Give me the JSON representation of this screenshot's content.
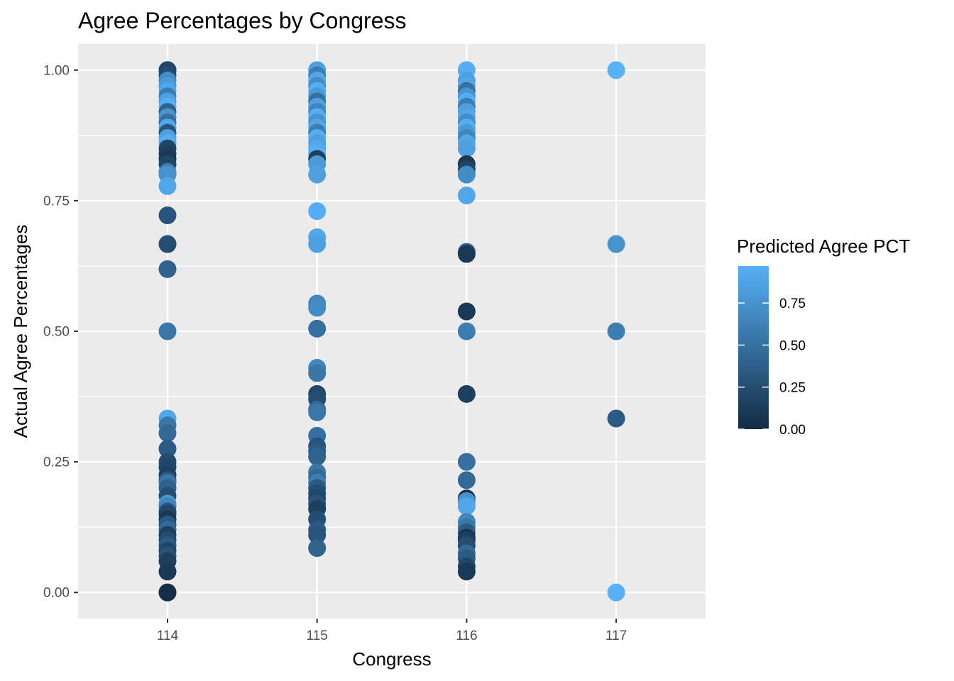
{
  "chart_data": {
    "type": "scatter",
    "title": "Agree Percentages by Congress",
    "xlabel": "Congress",
    "ylabel": "Actual Agree Percentages",
    "x_categories": [
      "114",
      "115",
      "116",
      "117"
    ],
    "y_ticks": [
      "0.00",
      "0.25",
      "0.50",
      "0.75",
      "1.00"
    ],
    "ylim": [
      -0.05,
      1.05
    ],
    "grid": true,
    "legend": {
      "title": "Predicted Agree PCT",
      "position": "right",
      "ticks": [
        "0.00",
        "0.25",
        "0.50",
        "0.75"
      ],
      "range": [
        0,
        0.97
      ],
      "color_low": "#132b43",
      "color_high": "#56b1f7"
    },
    "points": [
      {
        "x": "114",
        "y": 1.0,
        "c": 0.15
      },
      {
        "x": "114",
        "y": 1.0,
        "c": 0.2
      },
      {
        "x": "114",
        "y": 0.99,
        "c": 0.25
      },
      {
        "x": "114",
        "y": 0.98,
        "c": 0.7
      },
      {
        "x": "114",
        "y": 0.97,
        "c": 0.8
      },
      {
        "x": "114",
        "y": 0.96,
        "c": 0.9
      },
      {
        "x": "114",
        "y": 0.95,
        "c": 0.6
      },
      {
        "x": "114",
        "y": 0.94,
        "c": 0.85
      },
      {
        "x": "114",
        "y": 0.93,
        "c": 0.95
      },
      {
        "x": "114",
        "y": 0.92,
        "c": 0.4
      },
      {
        "x": "114",
        "y": 0.91,
        "c": 0.75
      },
      {
        "x": "114",
        "y": 0.9,
        "c": 0.5
      },
      {
        "x": "114",
        "y": 0.89,
        "c": 0.9
      },
      {
        "x": "114",
        "y": 0.88,
        "c": 0.3
      },
      {
        "x": "114",
        "y": 0.87,
        "c": 0.85
      },
      {
        "x": "114",
        "y": 0.86,
        "c": 0.95
      },
      {
        "x": "114",
        "y": 0.85,
        "c": 0.2
      },
      {
        "x": "114",
        "y": 0.84,
        "c": 0.15
      },
      {
        "x": "114",
        "y": 0.83,
        "c": 0.1
      },
      {
        "x": "114",
        "y": 0.82,
        "c": 0.2
      },
      {
        "x": "114",
        "y": 0.805,
        "c": 0.6
      },
      {
        "x": "114",
        "y": 0.8,
        "c": 0.75
      },
      {
        "x": "114",
        "y": 0.778,
        "c": 0.9
      },
      {
        "x": "114",
        "y": 0.722,
        "c": 0.3
      },
      {
        "x": "114",
        "y": 0.667,
        "c": 0.2
      },
      {
        "x": "114",
        "y": 0.667,
        "c": 0.25
      },
      {
        "x": "114",
        "y": 0.619,
        "c": 0.4
      },
      {
        "x": "114",
        "y": 0.5,
        "c": 0.55
      },
      {
        "x": "114",
        "y": 0.333,
        "c": 0.9
      },
      {
        "x": "114",
        "y": 0.32,
        "c": 0.55
      },
      {
        "x": "114",
        "y": 0.305,
        "c": 0.45
      },
      {
        "x": "114",
        "y": 0.275,
        "c": 0.35
      },
      {
        "x": "114",
        "y": 0.25,
        "c": 0.25
      },
      {
        "x": "114",
        "y": 0.24,
        "c": 0.2
      },
      {
        "x": "114",
        "y": 0.225,
        "c": 0.15
      },
      {
        "x": "114",
        "y": 0.215,
        "c": 0.3
      },
      {
        "x": "114",
        "y": 0.21,
        "c": 0.55
      },
      {
        "x": "114",
        "y": 0.2,
        "c": 0.4
      },
      {
        "x": "114",
        "y": 0.185,
        "c": 0.25
      },
      {
        "x": "114",
        "y": 0.17,
        "c": 0.8
      },
      {
        "x": "114",
        "y": 0.165,
        "c": 0.65
      },
      {
        "x": "114",
        "y": 0.155,
        "c": 0.3
      },
      {
        "x": "114",
        "y": 0.15,
        "c": 0.2
      },
      {
        "x": "114",
        "y": 0.14,
        "c": 0.1
      },
      {
        "x": "114",
        "y": 0.13,
        "c": 0.35
      },
      {
        "x": "114",
        "y": 0.12,
        "c": 0.45
      },
      {
        "x": "114",
        "y": 0.11,
        "c": 0.15
      },
      {
        "x": "114",
        "y": 0.1,
        "c": 0.25
      },
      {
        "x": "114",
        "y": 0.09,
        "c": 0.35
      },
      {
        "x": "114",
        "y": 0.08,
        "c": 0.2
      },
      {
        "x": "114",
        "y": 0.07,
        "c": 0.3
      },
      {
        "x": "114",
        "y": 0.06,
        "c": 0.15
      },
      {
        "x": "114",
        "y": 0.04,
        "c": 0.1
      },
      {
        "x": "114",
        "y": 0.0,
        "c": 0.05
      },
      {
        "x": "114",
        "y": 0.0,
        "c": 0.02
      },
      {
        "x": "115",
        "y": 1.0,
        "c": 0.85
      },
      {
        "x": "115",
        "y": 0.99,
        "c": 0.6
      },
      {
        "x": "115",
        "y": 0.98,
        "c": 0.9
      },
      {
        "x": "115",
        "y": 0.97,
        "c": 0.7
      },
      {
        "x": "115",
        "y": 0.96,
        "c": 0.95
      },
      {
        "x": "115",
        "y": 0.95,
        "c": 0.8
      },
      {
        "x": "115",
        "y": 0.94,
        "c": 0.5
      },
      {
        "x": "115",
        "y": 0.93,
        "c": 0.85
      },
      {
        "x": "115",
        "y": 0.92,
        "c": 0.65
      },
      {
        "x": "115",
        "y": 0.91,
        "c": 0.95
      },
      {
        "x": "115",
        "y": 0.9,
        "c": 0.75
      },
      {
        "x": "115",
        "y": 0.89,
        "c": 0.9
      },
      {
        "x": "115",
        "y": 0.88,
        "c": 0.6
      },
      {
        "x": "115",
        "y": 0.87,
        "c": 0.95
      },
      {
        "x": "115",
        "y": 0.86,
        "c": 0.85
      },
      {
        "x": "115",
        "y": 0.85,
        "c": 0.9
      },
      {
        "x": "115",
        "y": 0.84,
        "c": 0.95
      },
      {
        "x": "115",
        "y": 0.83,
        "c": 0.15
      },
      {
        "x": "115",
        "y": 0.82,
        "c": 0.8
      },
      {
        "x": "115",
        "y": 0.8,
        "c": 0.85
      },
      {
        "x": "115",
        "y": 0.73,
        "c": 0.95
      },
      {
        "x": "115",
        "y": 0.68,
        "c": 0.9
      },
      {
        "x": "115",
        "y": 0.667,
        "c": 0.85
      },
      {
        "x": "115",
        "y": 0.553,
        "c": 0.65
      },
      {
        "x": "115",
        "y": 0.545,
        "c": 0.7
      },
      {
        "x": "115",
        "y": 0.505,
        "c": 0.5
      },
      {
        "x": "115",
        "y": 0.43,
        "c": 0.65
      },
      {
        "x": "115",
        "y": 0.42,
        "c": 0.55
      },
      {
        "x": "115",
        "y": 0.38,
        "c": 0.2
      },
      {
        "x": "115",
        "y": 0.37,
        "c": 0.25
      },
      {
        "x": "115",
        "y": 0.35,
        "c": 0.45
      },
      {
        "x": "115",
        "y": 0.345,
        "c": 0.55
      },
      {
        "x": "115",
        "y": 0.3,
        "c": 0.5
      },
      {
        "x": "115",
        "y": 0.28,
        "c": 0.3
      },
      {
        "x": "115",
        "y": 0.27,
        "c": 0.35
      },
      {
        "x": "115",
        "y": 0.26,
        "c": 0.4
      },
      {
        "x": "115",
        "y": 0.23,
        "c": 0.55
      },
      {
        "x": "115",
        "y": 0.22,
        "c": 0.45
      },
      {
        "x": "115",
        "y": 0.21,
        "c": 0.6
      },
      {
        "x": "115",
        "y": 0.2,
        "c": 0.35
      },
      {
        "x": "115",
        "y": 0.19,
        "c": 0.25
      },
      {
        "x": "115",
        "y": 0.18,
        "c": 0.2
      },
      {
        "x": "115",
        "y": 0.17,
        "c": 0.3
      },
      {
        "x": "115",
        "y": 0.16,
        "c": 0.15
      },
      {
        "x": "115",
        "y": 0.14,
        "c": 0.25
      },
      {
        "x": "115",
        "y": 0.12,
        "c": 0.35
      },
      {
        "x": "115",
        "y": 0.11,
        "c": 0.3
      },
      {
        "x": "115",
        "y": 0.085,
        "c": 0.4
      },
      {
        "x": "116",
        "y": 1.0,
        "c": 0.95
      },
      {
        "x": "116",
        "y": 0.98,
        "c": 0.85
      },
      {
        "x": "116",
        "y": 0.97,
        "c": 0.9
      },
      {
        "x": "116",
        "y": 0.96,
        "c": 0.5
      },
      {
        "x": "116",
        "y": 0.95,
        "c": 0.75
      },
      {
        "x": "116",
        "y": 0.94,
        "c": 0.95
      },
      {
        "x": "116",
        "y": 0.93,
        "c": 0.6
      },
      {
        "x": "116",
        "y": 0.92,
        "c": 0.85
      },
      {
        "x": "116",
        "y": 0.91,
        "c": 0.9
      },
      {
        "x": "116",
        "y": 0.9,
        "c": 0.7
      },
      {
        "x": "116",
        "y": 0.89,
        "c": 0.95
      },
      {
        "x": "116",
        "y": 0.88,
        "c": 0.8
      },
      {
        "x": "116",
        "y": 0.87,
        "c": 0.65
      },
      {
        "x": "116",
        "y": 0.86,
        "c": 0.9
      },
      {
        "x": "116",
        "y": 0.85,
        "c": 0.85
      },
      {
        "x": "116",
        "y": 0.82,
        "c": 0.1
      },
      {
        "x": "116",
        "y": 0.81,
        "c": 0.2
      },
      {
        "x": "116",
        "y": 0.8,
        "c": 0.7
      },
      {
        "x": "116",
        "y": 0.76,
        "c": 0.9
      },
      {
        "x": "116",
        "y": 0.652,
        "c": 0.4
      },
      {
        "x": "116",
        "y": 0.648,
        "c": 0.1
      },
      {
        "x": "116",
        "y": 0.538,
        "c": 0.1
      },
      {
        "x": "116",
        "y": 0.5,
        "c": 0.6
      },
      {
        "x": "116",
        "y": 0.38,
        "c": 0.15
      },
      {
        "x": "116",
        "y": 0.25,
        "c": 0.5
      },
      {
        "x": "116",
        "y": 0.215,
        "c": 0.45
      },
      {
        "x": "116",
        "y": 0.18,
        "c": 0.05
      },
      {
        "x": "116",
        "y": 0.175,
        "c": 0.75
      },
      {
        "x": "116",
        "y": 0.165,
        "c": 0.9
      },
      {
        "x": "116",
        "y": 0.135,
        "c": 0.65
      },
      {
        "x": "116",
        "y": 0.125,
        "c": 0.55
      },
      {
        "x": "116",
        "y": 0.115,
        "c": 0.35
      },
      {
        "x": "116",
        "y": 0.105,
        "c": 0.05
      },
      {
        "x": "116",
        "y": 0.1,
        "c": 0.15
      },
      {
        "x": "116",
        "y": 0.09,
        "c": 0.25
      },
      {
        "x": "116",
        "y": 0.075,
        "c": 0.45
      },
      {
        "x": "116",
        "y": 0.065,
        "c": 0.35
      },
      {
        "x": "116",
        "y": 0.05,
        "c": 0.2
      },
      {
        "x": "116",
        "y": 0.04,
        "c": 0.1
      },
      {
        "x": "117",
        "y": 1.0,
        "c": 0.97
      },
      {
        "x": "117",
        "y": 0.667,
        "c": 0.75
      },
      {
        "x": "117",
        "y": 0.5,
        "c": 0.6
      },
      {
        "x": "117",
        "y": 0.333,
        "c": 0.35
      },
      {
        "x": "117",
        "y": 0.0,
        "c": 0.97
      }
    ]
  }
}
